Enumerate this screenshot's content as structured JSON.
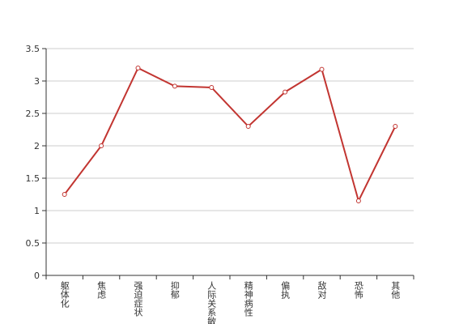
{
  "chart_data": {
    "type": "line",
    "categories": [
      "躯体化",
      "焦虑",
      "强迫症状",
      "抑郁",
      "人际关系敏感",
      "精神病性",
      "偏执",
      "敌对",
      "恐怖",
      "其他"
    ],
    "series": [
      {
        "color": "#c23531",
        "values": [
          1.25,
          2.0,
          3.2,
          2.92,
          2.9,
          2.3,
          2.83,
          3.18,
          1.15,
          2.3
        ]
      }
    ],
    "ylim": [
      0,
      3.5
    ],
    "yticks": [
      0,
      0.5,
      1,
      1.5,
      2,
      2.5,
      3,
      3.5
    ],
    "grid": true
  }
}
